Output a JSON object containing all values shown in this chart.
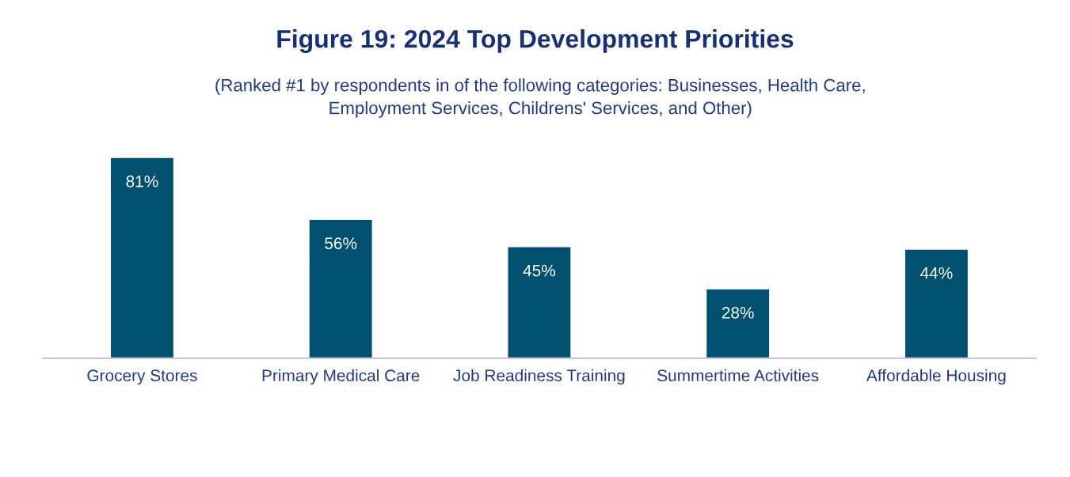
{
  "chart_data": {
    "type": "bar",
    "title": "Figure 19: 2024 Top Development Priorities",
    "subtitle": "(Ranked #1 by respondents in of the following categories: Businesses, Health Care,\nEmployment Services, Childrens' Services, and Other)",
    "categories": [
      "Grocery Stores",
      "Primary Medical Care",
      "Job Readiness Training",
      "Summertime Activities",
      "Affordable Housing"
    ],
    "values": [
      81,
      56,
      45,
      28,
      44
    ],
    "value_labels": [
      "81%",
      "56%",
      "45%",
      "28%",
      "44%"
    ],
    "color": "#00506f",
    "grid": false,
    "legend": false
  }
}
